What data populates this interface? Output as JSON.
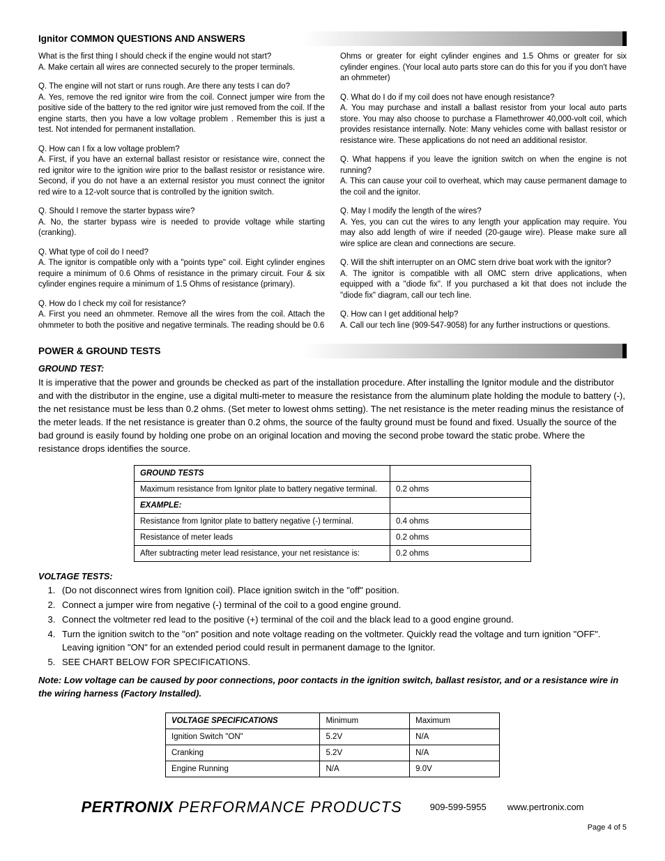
{
  "sectionQA": {
    "title": "Ignitor COMMON QUESTIONS AND ANSWERS",
    "left": [
      "What is the first thing I should check if the engine would not start?\nA. Make certain all wires are connected securely to the proper terminals.",
      "Q. The engine will not start or runs rough. Are there any tests I can do?\nA. Yes, remove the red ignitor wire from the coil. Connect jumper wire from the positive side of the battery to the red ignitor wire just removed from the coil. If the engine starts, then you have a low voltage problem . Remember this is just a test. Not intended for permanent installation.",
      "Q. How can I fix a low voltage problem?\nA. First, if you have an external ballast resistor or resistance wire, connect the red ignitor wire to the ignition wire prior to the ballast resistor or resistance wire. Second, if you do not have a an external resistor you must connect the ignitor red wire to a 12-volt source that is controlled by the ignition switch.",
      "Q. Should I remove the starter bypass wire?\nA. No, the starter bypass wire is needed to provide voltage while starting (cranking).",
      "Q. What type of coil do I need?\nA. The ignitor is compatible only with a \"points type\" coil. Eight cylinder engines require a minimum of 0.6 Ohms of resistance in the primary circuit. Four & six cylinder engines require a minimum of 1.5 Ohms of resistance (primary).",
      "Q. How do I check my coil for resistance?\nA. First you need an ohmmeter. Remove all the wires from the coil. Attach the ohmmeter to both the positive and negative terminals. The reading should be 0.6"
    ],
    "right": [
      "Ohms or greater for eight cylinder engines and 1.5 Ohms or greater for six cylinder engines. (Your local auto parts store can do this for you if you don't have an ohmmeter)",
      "Q. What do I do if my coil does not have enough resistance?\nA. You may purchase and install a ballast resistor from your local auto parts store. You may also choose to purchase a Flamethrower 40,000-volt coil, which provides resistance internally. Note: Many vehicles come with ballast resistor or resistance wire. These applications do not need an additional resistor.",
      "Q. What happens if you leave the ignition switch on when the engine is not running?\nA. This can cause your coil to overheat, which may cause permanent damage to the coil and the ignitor.",
      "Q. May I modify the length of the wires?\nA. Yes, you can cut the wires to any length your application may require. You may also add length of wire if needed (20-gauge wire). Please make sure all wire splice are clean and connections are secure.",
      "Q. Will the shift interrupter on an OMC stern drive boat work with the ignitor?\nA. The ignitor is compatible with all OMC stern drive applications, when equipped with a \"diode fix\". If you purchased a kit that does not include the \"diode fix\" diagram, call our tech line.",
      "Q. How can I get additional help?\nA. Call our tech line (909-547-9058) for any further instructions or questions."
    ]
  },
  "sectionPower": {
    "title": "POWER & GROUND TESTS",
    "groundLabel": "GROUND TEST:",
    "groundText": "It is imperative that the power and grounds be checked as part of the installation procedure.  After installing the Ignitor module and the distributor and with the distributor in the engine, use a digital multi-meter to measure the resistance from the aluminum plate holding the module to battery (-), the net resistance must be less than 0.2 ohms.  (Set meter to lowest ohms setting). The net resistance is the meter reading minus the resistance of the meter leads.  If the net resistance is greater than 0.2 ohms, the source of the faulty ground must be found and fixed.  Usually the source of the bad ground is easily found by holding one probe on an original location and moving the second probe toward the static probe.  Where the resistance drops identifies the source.",
    "groundTable": {
      "header": "GROUND TESTS",
      "rows": [
        [
          "Maximum resistance from Ignitor plate to battery negative terminal.",
          "0.2 ohms"
        ]
      ],
      "exampleLabel": "EXAMPLE:",
      "exampleRows": [
        [
          "Resistance from Ignitor plate to battery negative (-) terminal.",
          "0.4 ohms"
        ],
        [
          "Resistance of meter leads",
          "0.2 ohms"
        ],
        [
          "After subtracting meter lead resistance, your net resistance is:",
          "0.2 ohms"
        ]
      ]
    },
    "voltageLabel": "VOLTAGE TESTS:",
    "steps": [
      "(Do not disconnect wires from Ignition coil). Place ignition switch in the \"off\" position.",
      "Connect a jumper wire from negative (-) terminal of the coil to a good engine ground.",
      "Connect the voltmeter red lead to the positive (+) terminal of the coil and the black lead to a good engine ground.",
      "Turn the ignition switch to the \"on\" position and note voltage reading on the voltmeter. Quickly read the voltage and turn ignition \"OFF\". Leaving ignition \"ON\" for an extended period could result in permanent damage to the Ignitor.",
      "SEE CHART BELOW FOR SPECIFICATIONS."
    ],
    "note": "Note: Low voltage can be caused by poor connections, poor contacts in the ignition switch, ballast resistor, and or a resistance wire in the wiring harness (Factory Installed).",
    "voltageTable": {
      "header": [
        "VOLTAGE SPECIFICATIONS",
        "Minimum",
        "Maximum"
      ],
      "rows": [
        [
          "Ignition Switch \"ON\"",
          "5.2V",
          "N/A"
        ],
        [
          "Cranking",
          "5.2V",
          "N/A"
        ],
        [
          "Engine Running",
          "N/A",
          "9.0V"
        ]
      ]
    }
  },
  "footer": {
    "brand1": "PERTRONIX",
    "brand2": " PERFORMANCE PRODUCTS",
    "phone": "909-599-5955",
    "url": "www.pertronix.com",
    "page": "Page 4 of 5"
  }
}
